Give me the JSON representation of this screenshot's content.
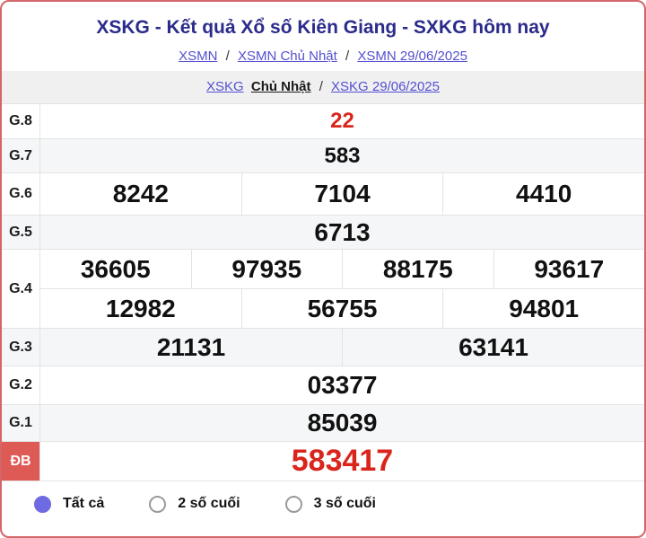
{
  "header": {
    "title": "XSKG - Kết quả Xổ số Kiên Giang - SXKG hôm nay",
    "breadcrumb": {
      "separator": "/",
      "items": [
        {
          "label": "XSMN"
        },
        {
          "label": "XSMN Chủ Nhật"
        },
        {
          "label": "XSMN 29/06/2025"
        }
      ]
    },
    "subnav": {
      "link1": "XSKG",
      "current": "Chủ Nhật",
      "separator": "/",
      "link2": "XSKG 29/06/2025"
    }
  },
  "results": {
    "rows": [
      {
        "label": "G.8",
        "numbers": [
          "22"
        ],
        "highlight": true
      },
      {
        "label": "G.7",
        "numbers": [
          "583"
        ]
      },
      {
        "label": "G.6",
        "numbers": [
          "8242",
          "7104",
          "4410"
        ]
      },
      {
        "label": "G.5",
        "numbers": [
          "6713"
        ]
      },
      {
        "label": "G.4",
        "lines": [
          [
            "36605",
            "97935",
            "88175",
            "93617"
          ],
          [
            "12982",
            "56755",
            "94801"
          ]
        ]
      },
      {
        "label": "G.3",
        "numbers": [
          "21131",
          "63141"
        ]
      },
      {
        "label": "G.2",
        "numbers": [
          "03377"
        ]
      },
      {
        "label": "G.1",
        "numbers": [
          "85039"
        ]
      },
      {
        "label": "ĐB",
        "numbers": [
          "583417"
        ],
        "special": true
      }
    ]
  },
  "filters": {
    "options": [
      {
        "label": "Tất cả",
        "selected": true
      },
      {
        "label": "2 số cuối",
        "selected": false
      },
      {
        "label": "3 số cuối",
        "selected": false
      }
    ]
  },
  "colors": {
    "title_navy": "#2b2b8b",
    "link_blue": "#5450cf",
    "highlight_red": "#da251c",
    "special_badge_bg": "#dd5a55",
    "card_border": "#d4666a",
    "radio_selected": "#6f6ae1",
    "row_alt_bg": "#f5f6f8"
  }
}
